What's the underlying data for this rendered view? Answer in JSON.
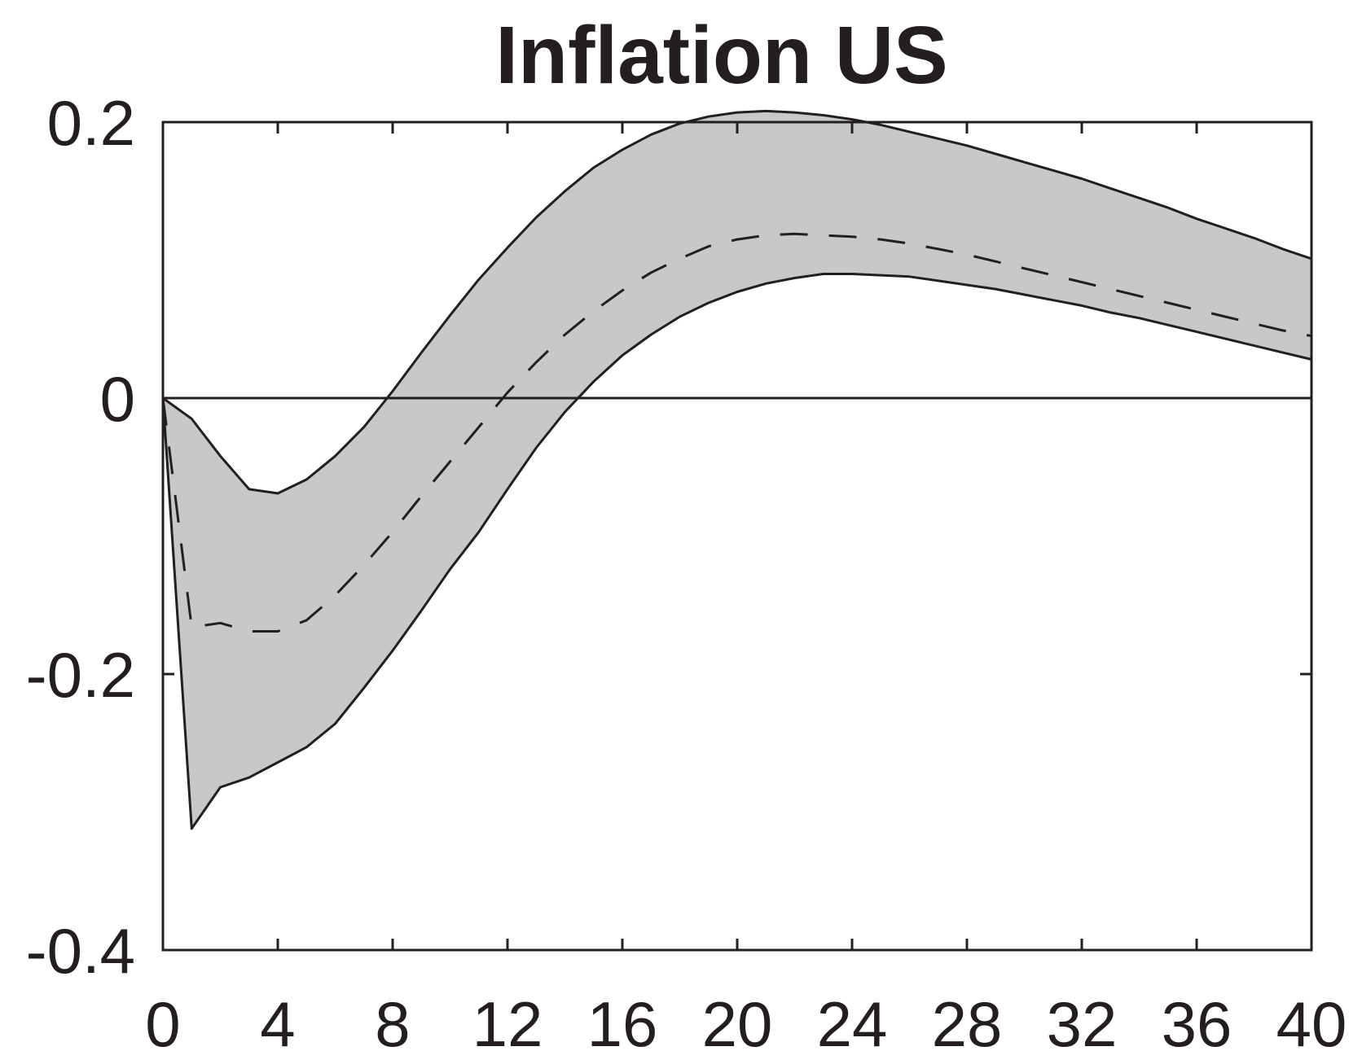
{
  "chart_data": {
    "type": "line",
    "title": "Inflation US",
    "xlabel": "",
    "ylabel": "",
    "xlim": [
      0,
      40
    ],
    "ylim": [
      -0.4,
      0.2
    ],
    "xticks": [
      0,
      4,
      8,
      12,
      16,
      20,
      24,
      28,
      32,
      36,
      40
    ],
    "xtick_labels": [
      "0",
      "4",
      "8",
      "12",
      "16",
      "20",
      "24",
      "28",
      "32",
      "36",
      "40"
    ],
    "yticks": [
      0.2,
      0,
      -0.2,
      -0.4
    ],
    "ytick_labels": [
      "0.2",
      "0",
      "-0.2",
      "-0.4"
    ],
    "grid": false,
    "reference_line_y": 0,
    "band_color": "#c6c8ca",
    "line_color": "#231f20",
    "x": [
      0,
      1,
      2,
      3,
      4,
      5,
      6,
      7,
      8,
      9,
      10,
      11,
      12,
      13,
      14,
      15,
      16,
      17,
      18,
      19,
      20,
      21,
      22,
      23,
      24,
      25,
      26,
      27,
      28,
      29,
      30,
      31,
      32,
      33,
      34,
      35,
      36,
      37,
      38,
      39,
      40
    ],
    "series": [
      {
        "style": "dashed",
        "values": [
          0,
          -0.166,
          -0.163,
          -0.169,
          -0.169,
          -0.161,
          -0.143,
          -0.121,
          -0.097,
          -0.071,
          -0.046,
          -0.021,
          0.004,
          0.026,
          0.046,
          0.063,
          0.078,
          0.091,
          0.101,
          0.11,
          0.115,
          0.118,
          0.119,
          0.118,
          0.117,
          0.115,
          0.112,
          0.108,
          0.104,
          0.099,
          0.094,
          0.089,
          0.084,
          0.079,
          0.074,
          0.069,
          0.064,
          0.059,
          0.054,
          0.049,
          0.045
        ]
      },
      {
        "style": "solid",
        "values": [
          0,
          -0.015,
          -0.042,
          -0.066,
          -0.069,
          -0.059,
          -0.042,
          -0.021,
          0.005,
          0.033,
          0.06,
          0.086,
          0.109,
          0.131,
          0.15,
          0.167,
          0.18,
          0.191,
          0.199,
          0.204,
          0.207,
          0.208,
          0.207,
          0.205,
          0.202,
          0.198,
          0.193,
          0.188,
          0.183,
          0.177,
          0.171,
          0.165,
          0.159,
          0.152,
          0.145,
          0.138,
          0.13,
          0.123,
          0.116,
          0.108,
          0.101
        ]
      },
      {
        "style": "solid",
        "values": [
          0,
          -0.312,
          -0.282,
          -0.275,
          -0.264,
          -0.253,
          -0.236,
          -0.21,
          -0.183,
          -0.154,
          -0.124,
          -0.097,
          -0.066,
          -0.036,
          -0.01,
          0.012,
          0.031,
          0.046,
          0.059,
          0.069,
          0.077,
          0.083,
          0.087,
          0.09,
          0.09,
          0.089,
          0.088,
          0.085,
          0.082,
          0.079,
          0.075,
          0.071,
          0.067,
          0.062,
          0.058,
          0.053,
          0.048,
          0.043,
          0.038,
          0.033,
          0.028
        ]
      }
    ]
  }
}
